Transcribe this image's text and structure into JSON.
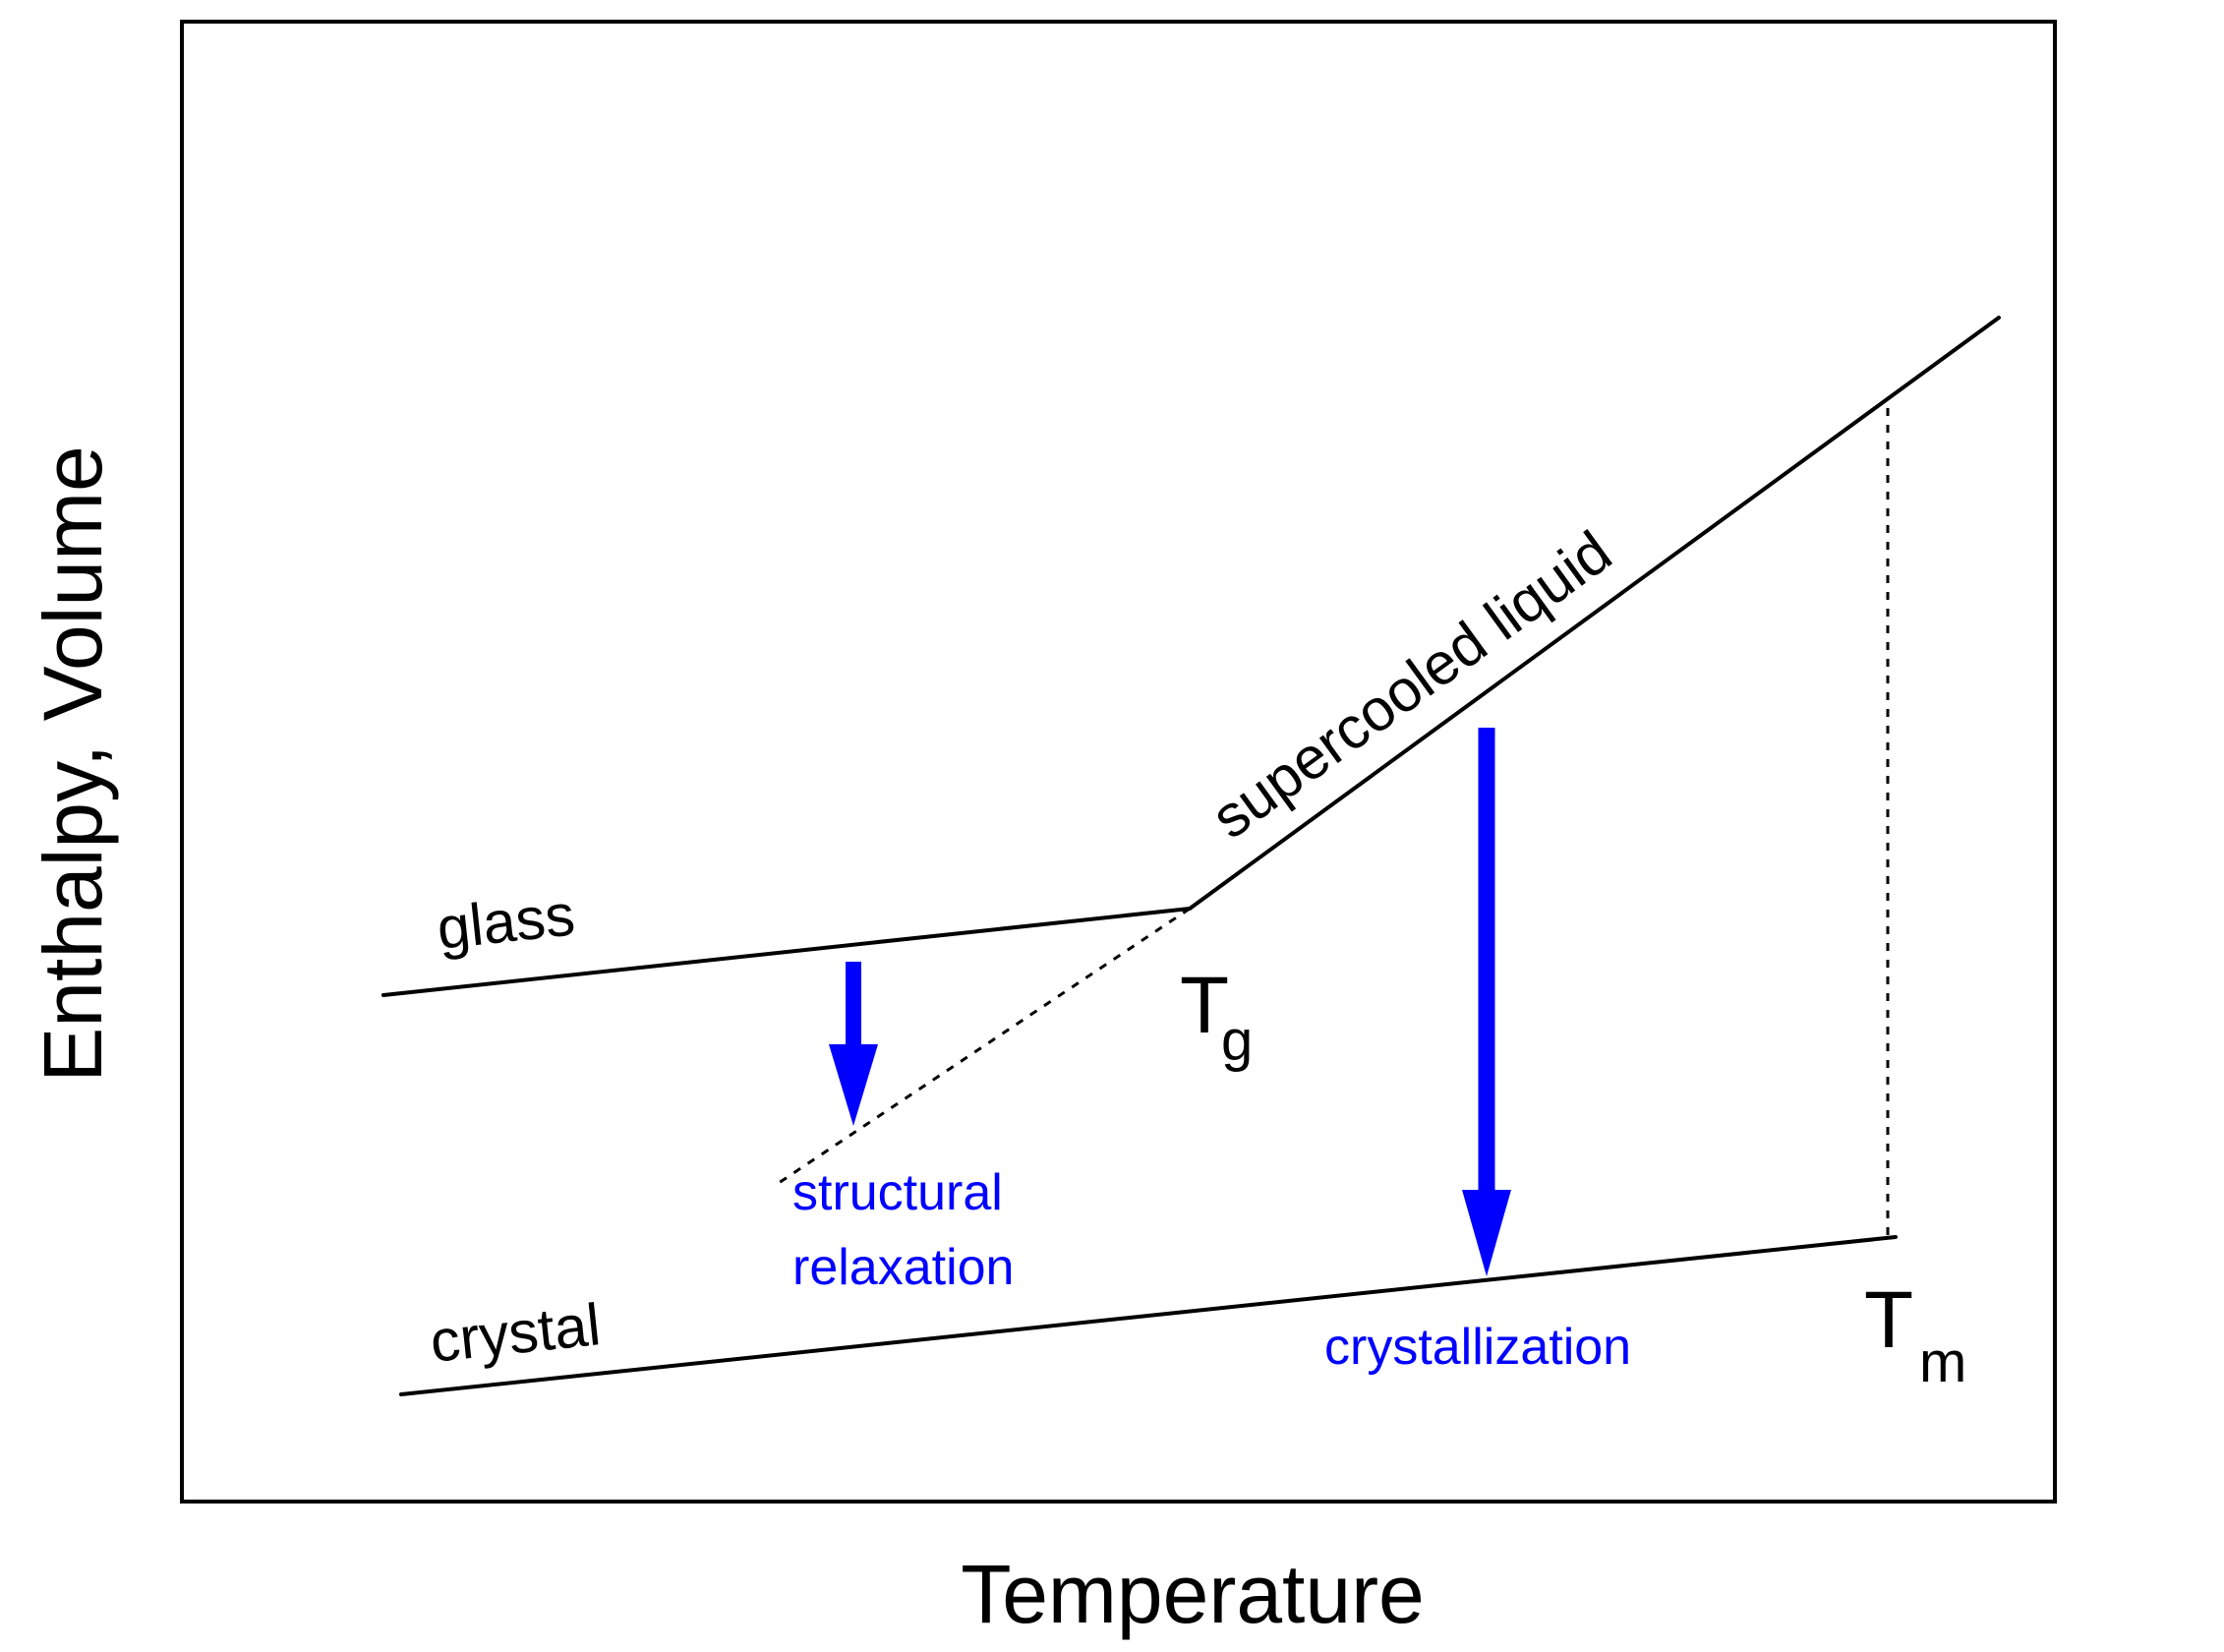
{
  "diagram": {
    "type": "phase-diagram",
    "axes": {
      "xlabel": "Temperature",
      "ylabel": "Enthalpy, Volume"
    },
    "curves": {
      "glass": "glass",
      "supercooled_liquid": "supercooled liquid",
      "crystal": "crystal"
    },
    "temperatures": {
      "tg_main": "T",
      "tg_sub": "g",
      "tm_main": "T",
      "tm_sub": "m"
    },
    "processes": {
      "structural_line1": "structural",
      "structural_line2": "relaxation",
      "crystallization": "crystallization"
    },
    "colors": {
      "line": "#000000",
      "process_arrow": "#0000ff",
      "process_text": "#0000ff",
      "background": "#ffffff"
    }
  }
}
